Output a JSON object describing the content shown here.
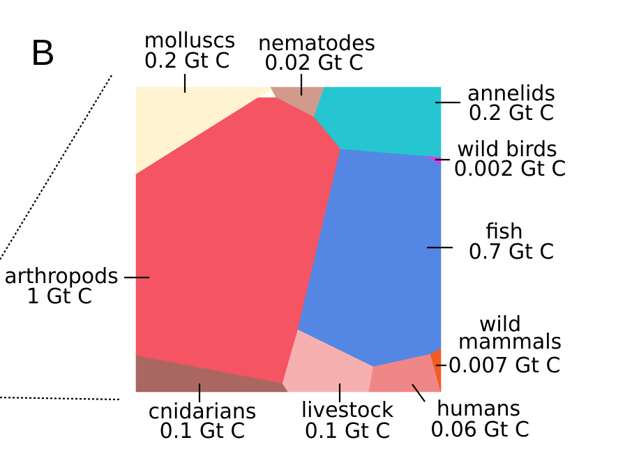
{
  "panel_label": "B",
  "chart_data": {
    "type": "voronoi-treemap",
    "unit": "Gt C",
    "cells": [
      {
        "name": "molluscs",
        "value_label": "0.2 Gt C",
        "value": 0.2,
        "color": "#FFF3D2"
      },
      {
        "name": "nematodes",
        "value_label": "0.02 Gt C",
        "value": 0.02,
        "color": "#D19B8C"
      },
      {
        "name": "annelids",
        "value_label": "0.2 Gt C",
        "value": 0.2,
        "color": "#25C6D1"
      },
      {
        "name": "wild birds",
        "value_label": "0.002 Gt C",
        "value": 0.002,
        "color": "#E13BE6"
      },
      {
        "name": "arthropods",
        "value_label": "1 Gt C",
        "value": 1,
        "color": "#F55462"
      },
      {
        "name": "fish",
        "value_label": "0.7 Gt C",
        "value": 0.7,
        "color": "#5487E4"
      },
      {
        "name": "cnidarians",
        "value_label": "0.1 Gt C",
        "value": 0.1,
        "color": "#AA6762"
      },
      {
        "name": "livestock",
        "value_label": "0.1 Gt C",
        "value": 0.1,
        "color": "#F6B0AF"
      },
      {
        "name": "humans",
        "value_label": "0.06 Gt C",
        "value": 0.06,
        "color": "#F08787"
      },
      {
        "name": "wild mammals",
        "value_label": "0.007 Gt C",
        "value": 0.007,
        "color": "#F25C24"
      }
    ]
  }
}
